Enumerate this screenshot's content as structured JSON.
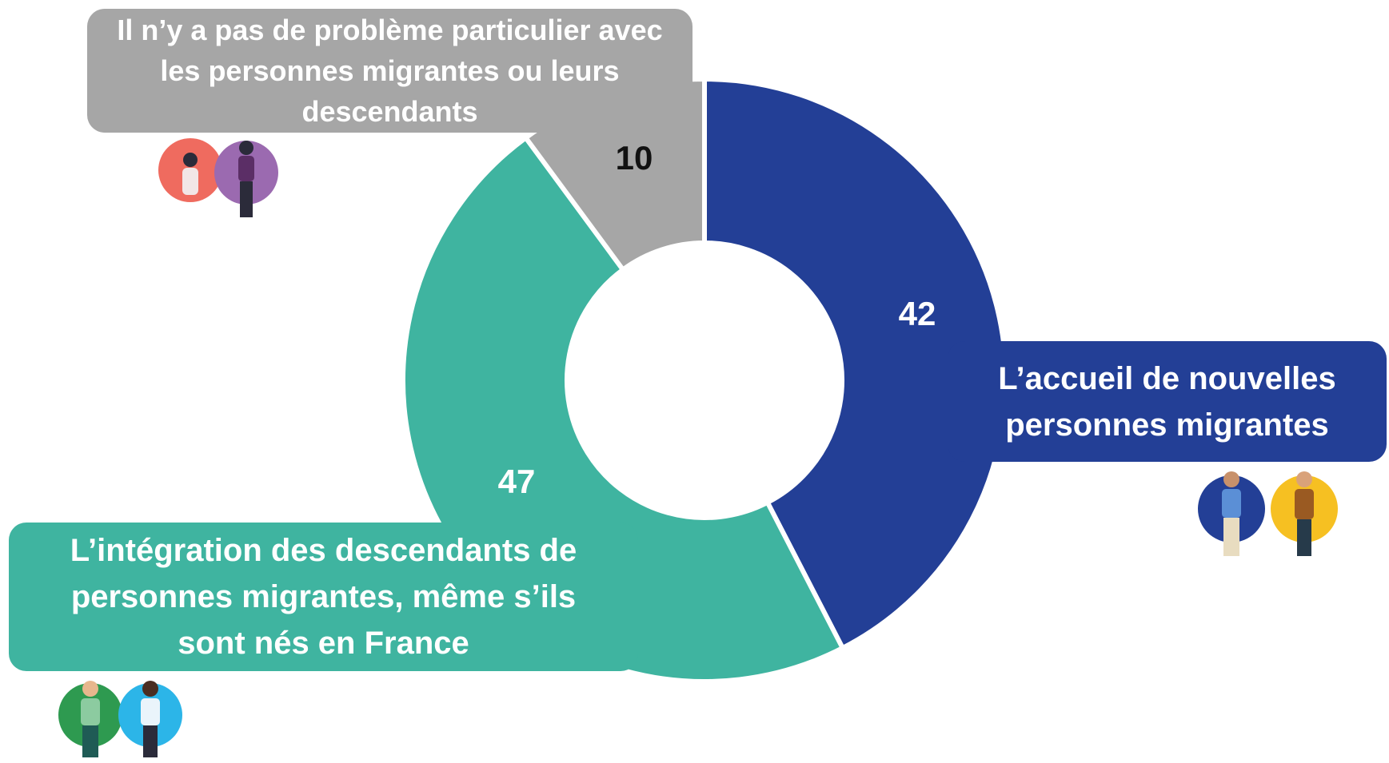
{
  "chart_data": {
    "type": "donut",
    "categories": [
      "L’accueil de nouvelles personnes migrantes",
      "L’intégration des descendants de personnes migrantes, même s’ils sont nés en France",
      "Il n’y a pas de problème particulier avec les personnes migrantes ou leurs descendants"
    ],
    "values": [
      42,
      47,
      10
    ],
    "colors": [
      "#233f96",
      "#3fb4a0",
      "#a6a6a6"
    ]
  }
}
